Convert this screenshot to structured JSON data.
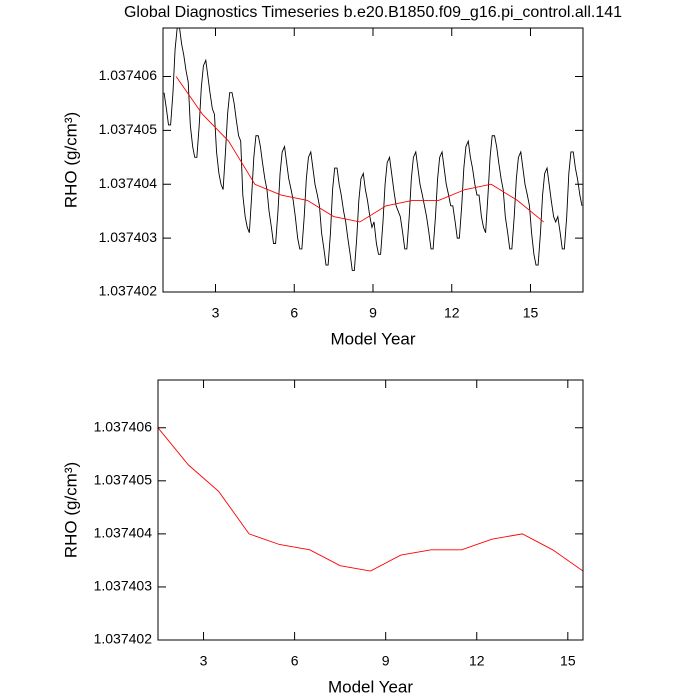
{
  "chart_data": [
    {
      "type": "line",
      "title": "Global Diagnostics Timeseries b.e20.B1850.f09_g16.pi_control.all.141",
      "xlabel": "Model Year",
      "ylabel": "RHO (g/cm³)",
      "xlim": [
        1.0,
        17.0
      ],
      "ylim": [
        1.037402,
        1.0374069
      ],
      "xticks": [
        3,
        6,
        9,
        12,
        15
      ],
      "yticks": [
        1.037402,
        1.037403,
        1.037404,
        1.037405,
        1.037406
      ],
      "series": [
        {
          "color": "#000000",
          "x": [
            1.04,
            1.13,
            1.21,
            1.29,
            1.38,
            1.46,
            1.54,
            1.63,
            1.71,
            1.79,
            1.88,
            1.96,
            2.04,
            2.13,
            2.21,
            2.29,
            2.38,
            2.46,
            2.54,
            2.63,
            2.71,
            2.79,
            2.88,
            2.96,
            3.04,
            3.13,
            3.21,
            3.29,
            3.38,
            3.46,
            3.54,
            3.63,
            3.71,
            3.79,
            3.88,
            3.96,
            4.04,
            4.13,
            4.21,
            4.29,
            4.38,
            4.46,
            4.54,
            4.63,
            4.71,
            4.79,
            4.88,
            4.96,
            5.04,
            5.13,
            5.21,
            5.29,
            5.38,
            5.46,
            5.54,
            5.63,
            5.71,
            5.79,
            5.88,
            5.96,
            6.04,
            6.13,
            6.21,
            6.29,
            6.38,
            6.46,
            6.54,
            6.63,
            6.71,
            6.79,
            6.88,
            6.96,
            7.04,
            7.13,
            7.21,
            7.29,
            7.38,
            7.46,
            7.54,
            7.63,
            7.71,
            7.79,
            7.88,
            7.96,
            8.04,
            8.13,
            8.21,
            8.29,
            8.38,
            8.46,
            8.54,
            8.63,
            8.71,
            8.79,
            8.88,
            8.96,
            9.04,
            9.13,
            9.21,
            9.29,
            9.38,
            9.46,
            9.54,
            9.63,
            9.71,
            9.79,
            9.88,
            9.96,
            10.04,
            10.13,
            10.21,
            10.29,
            10.38,
            10.46,
            10.54,
            10.63,
            10.71,
            10.79,
            10.88,
            10.96,
            11.04,
            11.13,
            11.21,
            11.29,
            11.38,
            11.46,
            11.54,
            11.63,
            11.71,
            11.79,
            11.88,
            11.96,
            12.04,
            12.13,
            12.21,
            12.29,
            12.38,
            12.46,
            12.54,
            12.63,
            12.71,
            12.79,
            12.88,
            12.96,
            13.04,
            13.13,
            13.21,
            13.29,
            13.38,
            13.46,
            13.54,
            13.63,
            13.71,
            13.79,
            13.88,
            13.96,
            14.04,
            14.13,
            14.21,
            14.29,
            14.38,
            14.46,
            14.54,
            14.63,
            14.71,
            14.79,
            14.88,
            14.96,
            15.04,
            15.13,
            15.21,
            15.29,
            15.38,
            15.46,
            15.54,
            15.63,
            15.71,
            15.79,
            15.88,
            15.96,
            16.04,
            16.13,
            16.21,
            16.29,
            16.38,
            16.46,
            16.54,
            16.63,
            16.71,
            16.79,
            16.88,
            16.96
          ],
          "values": [
            1.0374057,
            1.0374054,
            1.0374051,
            1.0374051,
            1.0374057,
            1.0374065,
            1.0374069,
            1.0374069,
            1.0374066,
            1.0374064,
            1.0374061,
            1.0374059,
            1.0374051,
            1.0374047,
            1.0374045,
            1.0374045,
            1.0374051,
            1.0374058,
            1.0374062,
            1.0374063,
            1.037406,
            1.0374057,
            1.0374054,
            1.0374053,
            1.0374046,
            1.0374042,
            1.037404,
            1.0374039,
            1.0374046,
            1.0374053,
            1.0374057,
            1.0374057,
            1.0374055,
            1.0374052,
            1.0374049,
            1.0374048,
            1.0374038,
            1.0374034,
            1.0374032,
            1.0374031,
            1.0374038,
            1.0374045,
            1.0374049,
            1.0374049,
            1.0374047,
            1.0374044,
            1.0374041,
            1.0374039,
            1.0374035,
            1.0374032,
            1.0374029,
            1.0374029,
            1.0374035,
            1.0374042,
            1.0374046,
            1.0374047,
            1.0374044,
            1.0374041,
            1.0374039,
            1.0374037,
            1.0374034,
            1.037403,
            1.0374028,
            1.0374028,
            1.0374034,
            1.0374041,
            1.0374045,
            1.0374046,
            1.0374043,
            1.037404,
            1.0374038,
            1.0374036,
            1.0374031,
            1.0374028,
            1.0374025,
            1.0374025,
            1.0374031,
            1.0374039,
            1.0374043,
            1.0374043,
            1.037404,
            1.0374038,
            1.0374035,
            1.0374033,
            1.037403,
            1.0374027,
            1.0374024,
            1.0374024,
            1.037403,
            1.0374037,
            1.0374041,
            1.0374042,
            1.0374039,
            1.0374037,
            1.0374034,
            1.0374032,
            1.0374033,
            1.0374029,
            1.0374027,
            1.0374027,
            1.0374033,
            1.037404,
            1.0374044,
            1.0374045,
            1.0374042,
            1.0374039,
            1.0374036,
            1.0374035,
            1.0374034,
            1.0374031,
            1.0374028,
            1.0374028,
            1.0374034,
            1.0374041,
            1.0374045,
            1.0374046,
            1.0374043,
            1.037404,
            1.0374038,
            1.0374036,
            1.0374034,
            1.0374031,
            1.0374028,
            1.0374028,
            1.0374034,
            1.0374041,
            1.0374045,
            1.0374046,
            1.0374043,
            1.037404,
            1.0374038,
            1.0374036,
            1.0374036,
            1.0374033,
            1.037403,
            1.037403,
            1.0374036,
            1.0374043,
            1.0374047,
            1.0374048,
            1.0374045,
            1.0374043,
            1.037404,
            1.0374038,
            1.0374038,
            1.0374034,
            1.0374032,
            1.0374031,
            1.0374038,
            1.0374045,
            1.0374049,
            1.0374049,
            1.0374047,
            1.0374044,
            1.0374041,
            1.0374039,
            1.0374034,
            1.0374031,
            1.0374028,
            1.0374028,
            1.0374034,
            1.0374041,
            1.0374045,
            1.0374046,
            1.0374043,
            1.037404,
            1.0374038,
            1.0374036,
            1.0374031,
            1.0374027,
            1.0374025,
            1.0374025,
            1.0374031,
            1.0374038,
            1.0374042,
            1.0374043,
            1.037404,
            1.0374037,
            1.0374034,
            1.0374033,
            1.0374034,
            1.0374031,
            1.0374028,
            1.0374028,
            1.0374034,
            1.0374042,
            1.0374046,
            1.0374046,
            1.0374043,
            1.0374041,
            1.0374038,
            1.0374036
          ]
        },
        {
          "color": "#ff0000",
          "x": [
            1.5,
            2.5,
            3.5,
            4.5,
            5.5,
            6.5,
            7.5,
            8.5,
            9.5,
            10.5,
            11.5,
            12.5,
            13.5,
            14.5,
            15.5
          ],
          "values": [
            1.037406,
            1.0374053,
            1.0374048,
            1.037404,
            1.0374038,
            1.0374037,
            1.0374034,
            1.0374033,
            1.0374036,
            1.0374037,
            1.0374037,
            1.0374039,
            1.037404,
            1.0374037,
            1.0374033
          ]
        }
      ]
    },
    {
      "type": "line",
      "xlabel": "Model Year",
      "ylabel": "RHO (g/cm³)",
      "xlim": [
        1.5,
        15.5
      ],
      "ylim": [
        1.037402,
        1.0374069
      ],
      "xticks": [
        3,
        6,
        9,
        12,
        15
      ],
      "yticks": [
        1.037402,
        1.037403,
        1.037404,
        1.037405,
        1.037406
      ],
      "series": [
        {
          "color": "#ff0000",
          "x": [
            1.5,
            2.5,
            3.5,
            4.5,
            5.5,
            6.5,
            7.5,
            8.5,
            9.5,
            10.5,
            11.5,
            12.5,
            13.5,
            14.5,
            15.5
          ],
          "values": [
            1.037406,
            1.0374053,
            1.0374048,
            1.037404,
            1.0374038,
            1.0374037,
            1.0374034,
            1.0374033,
            1.0374036,
            1.0374037,
            1.0374037,
            1.0374039,
            1.037404,
            1.0374037,
            1.0374033
          ]
        }
      ]
    }
  ]
}
